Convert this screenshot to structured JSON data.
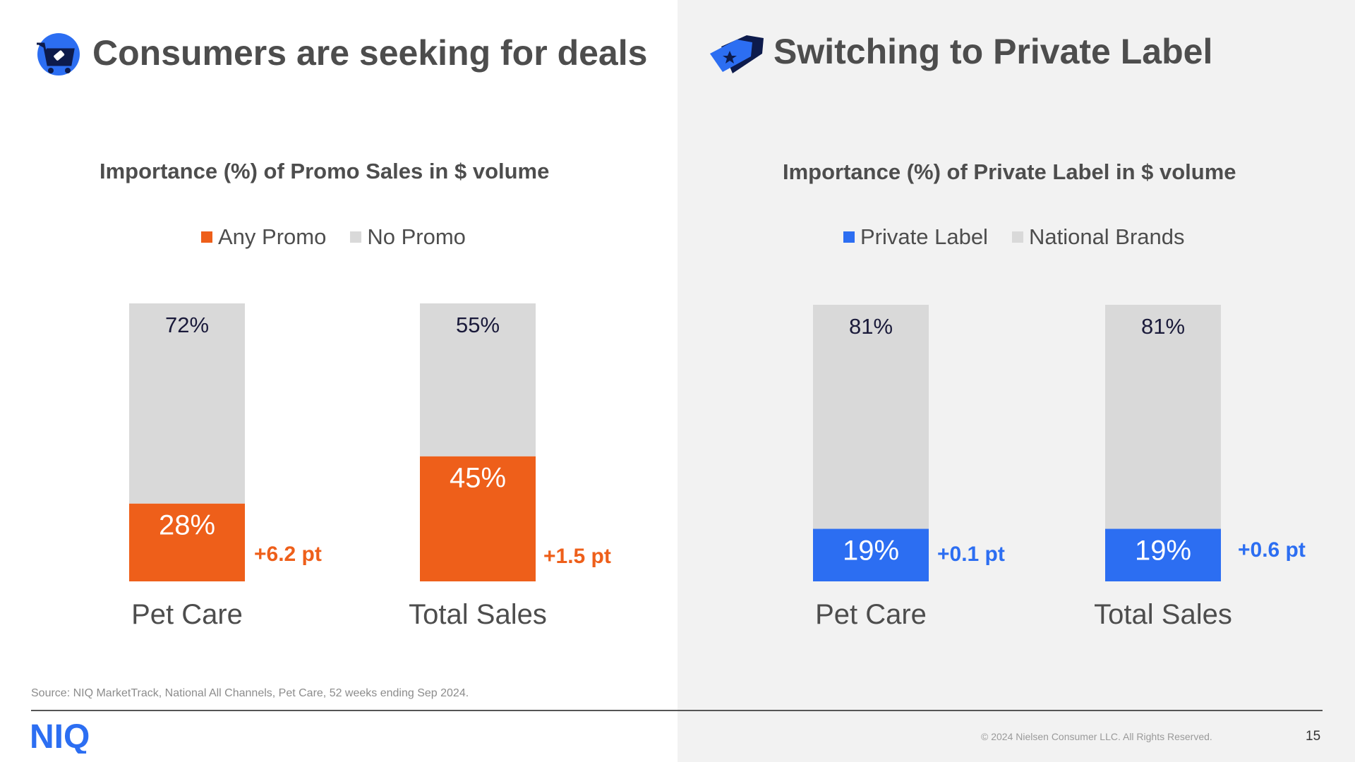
{
  "left_panel": {
    "title": "Consumers are seeking for deals",
    "icon": "shopping-cart-tag-icon"
  },
  "right_panel": {
    "title": "Switching to Private Label",
    "icon": "price-tag-star-icon"
  },
  "chart_data": [
    {
      "type": "bar",
      "stacked": true,
      "title": "Importance (%) of Promo Sales in $ volume",
      "legend_placement": "top",
      "categories": [
        "Pet Care",
        "Total Sales"
      ],
      "series": [
        {
          "name": "Any Promo",
          "color": "#ee5f1a",
          "values": [
            28,
            45
          ],
          "labels": [
            "28%",
            "45%"
          ]
        },
        {
          "name": "No Promo",
          "color": "#d9d9d9",
          "values": [
            72,
            55
          ],
          "labels": [
            "72%",
            "55%"
          ]
        }
      ],
      "annotations": [
        "+6.2 pt",
        "+1.5 pt"
      ],
      "annotation_color": "#ee5f1a",
      "ylim": [
        0,
        100
      ],
      "grid": false
    },
    {
      "type": "bar",
      "stacked": true,
      "title": "Importance (%) of Private Label in $ volume",
      "legend_placement": "top",
      "categories": [
        "Pet Care",
        "Total Sales"
      ],
      "series": [
        {
          "name": "Private Label",
          "color": "#2c6ef2",
          "values": [
            19,
            19
          ],
          "labels": [
            "19%",
            "19%"
          ]
        },
        {
          "name": "National Brands",
          "color": "#d9d9d9",
          "values": [
            81,
            81
          ],
          "labels": [
            "81%",
            "81%"
          ]
        }
      ],
      "annotations": [
        "+0.1 pt",
        "+0.6 pt"
      ],
      "annotation_color": "#2c6ef2",
      "ylim": [
        0,
        100
      ],
      "grid": false
    }
  ],
  "footer": {
    "source": "Source: NIQ MarketTrack, National All Channels, Pet Care, 52 weeks ending Sep 2024.",
    "logo_text": "NIQ",
    "copyright": "© 2024 Nielsen Consumer LLC. All Rights Reserved.",
    "page_number": "15"
  },
  "colors": {
    "title_text": "#4d4d4d",
    "brand_blue": "#2c6ef2",
    "promo_orange": "#ee5f1a",
    "neutral_bar": "#d9d9d9",
    "right_panel_bg": "#f2f2f2"
  }
}
